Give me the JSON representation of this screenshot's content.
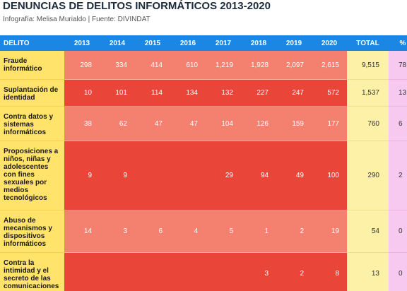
{
  "header": {
    "title": "DENUNCIAS DE DELITOS INFORMÁTICOS 2013-2020",
    "subtitle": "Infografía: Melisa Murialdo | Fuente: DIVINDAT"
  },
  "table": {
    "columns": [
      "DELITO",
      "2013",
      "2014",
      "2015",
      "2016",
      "2017",
      "2018",
      "2019",
      "2020",
      "TOTAL",
      "%"
    ],
    "rows": [
      {
        "label": "Fraude informático",
        "cells": [
          "298",
          "334",
          "414",
          "610",
          "1,219",
          "1,928",
          "2,097",
          "2,615"
        ],
        "total": "9,515",
        "percent": "78"
      },
      {
        "label": "Suplantación de identidad",
        "cells": [
          "10",
          "101",
          "114",
          "134",
          "132",
          "227",
          "247",
          "572"
        ],
        "total": "1,537",
        "percent": "13"
      },
      {
        "label": "Contra datos y sistemas informáticos",
        "cells": [
          "38",
          "62",
          "47",
          "47",
          "104",
          "126",
          "159",
          "177"
        ],
        "total": "760",
        "percent": "6"
      },
      {
        "label": "Proposiciones a niños, niñas y adolescentes con fines sexuales por medios tecnológicos",
        "cells": [
          "9",
          "9",
          null,
          null,
          "29",
          "94",
          "49",
          "100"
        ],
        "total": "290",
        "percent": "2"
      },
      {
        "label": "Abuso de mecanismos y dispositivos informáticos",
        "cells": [
          "14",
          "3",
          "6",
          "4",
          "5",
          "1",
          "2",
          "19"
        ],
        "total": "54",
        "percent": "0"
      },
      {
        "label": "Contra la intimidad y el secreto de las comunicaciones",
        "cells": [
          null,
          null,
          null,
          null,
          null,
          "3",
          "2",
          "8"
        ],
        "total": "13",
        "percent": "0"
      }
    ]
  }
}
